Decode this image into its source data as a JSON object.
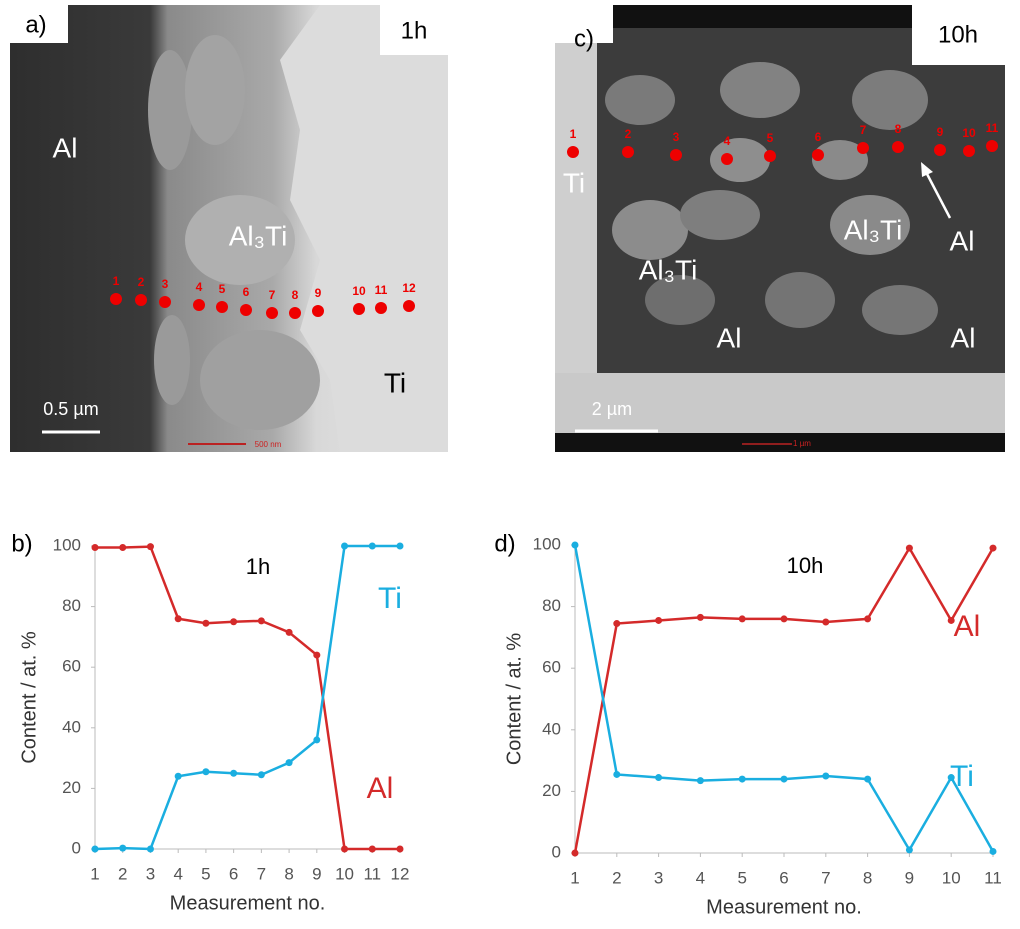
{
  "images": [
    {
      "panel": "a)",
      "time": "1h",
      "labels": [
        "Al",
        "Al₃Ti",
        "Ti"
      ],
      "points": [
        "1",
        "2",
        "3",
        "4",
        "5",
        "6",
        "7",
        "8",
        "9",
        "10",
        "11",
        "12"
      ],
      "scale_bar": "0.5 µm",
      "instrument_scale": "500 nm"
    },
    {
      "panel": "c)",
      "time": "10h",
      "labels": [
        "Ti",
        "Al₃Ti",
        "Al₃Ti",
        "Al",
        "Al",
        "Al"
      ],
      "points": [
        "1",
        "2",
        "3",
        "4",
        "5",
        "6",
        "7",
        "8",
        "9",
        "10",
        "11"
      ],
      "scale_bar": "2 µm",
      "instrument_scale": "1 µm"
    }
  ],
  "chart_data": [
    {
      "type": "line",
      "panel": "b)",
      "annotation": "1h",
      "x": [
        1,
        2,
        3,
        4,
        5,
        6,
        7,
        8,
        9,
        10,
        11,
        12
      ],
      "series": [
        {
          "name": "Al",
          "color": "#d42a2a",
          "values": [
            99.5,
            99.5,
            99.8,
            76,
            74.5,
            75,
            75.3,
            71.5,
            64,
            0,
            0,
            0
          ]
        },
        {
          "name": "Ti",
          "color": "#1aaee0",
          "values": [
            0,
            0.3,
            0,
            24,
            25.5,
            25,
            24.5,
            28.5,
            36,
            100,
            100,
            100
          ]
        }
      ],
      "xlim": [
        1,
        12
      ],
      "xticks": [
        1,
        2,
        3,
        4,
        5,
        6,
        7,
        8,
        9,
        10,
        11,
        12
      ],
      "ylim": [
        0,
        100
      ],
      "yticks": [
        0,
        20,
        40,
        60,
        80,
        100
      ],
      "y_label": "Content / at. %",
      "x_label": "Measurement no."
    },
    {
      "type": "line",
      "panel": "d)",
      "annotation": "10h",
      "x": [
        1,
        2,
        3,
        4,
        5,
        6,
        7,
        8,
        9,
        10,
        11
      ],
      "series": [
        {
          "name": "Al",
          "color": "#d42a2a",
          "values": [
            0,
            74.5,
            75.5,
            76.5,
            76,
            76,
            75,
            76,
            99,
            75.5,
            99
          ]
        },
        {
          "name": "Ti",
          "color": "#1aaee0",
          "values": [
            100,
            25.5,
            24.5,
            23.5,
            24,
            24,
            25,
            24,
            1,
            24.5,
            0.5
          ]
        }
      ],
      "xlim": [
        1,
        11
      ],
      "xticks": [
        1,
        2,
        3,
        4,
        5,
        6,
        7,
        8,
        9,
        10,
        11
      ],
      "ylim": [
        0,
        100
      ],
      "yticks": [
        0,
        20,
        40,
        60,
        80,
        100
      ],
      "y_label": "Content / at. %",
      "x_label": "Measurement no."
    }
  ]
}
